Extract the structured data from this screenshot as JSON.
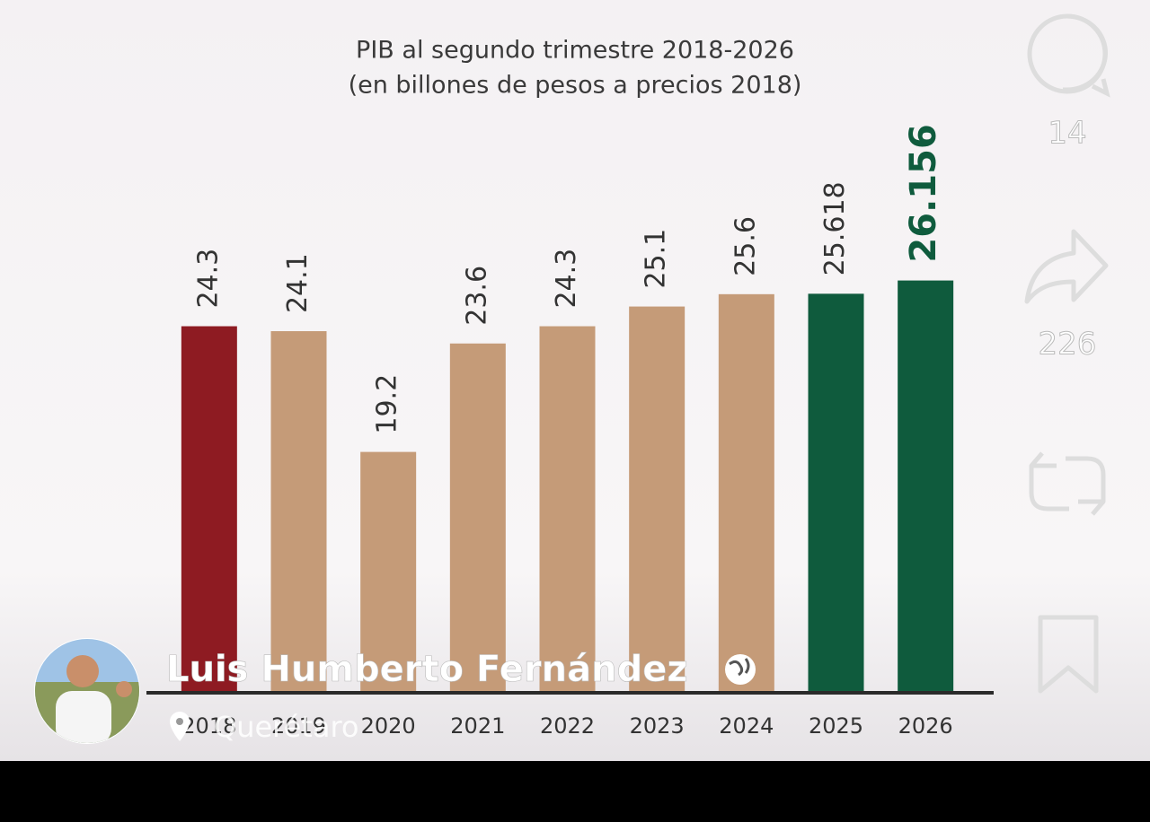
{
  "chart_data": {
    "type": "bar",
    "title": "PIB al segundo trimestre 2018-2026",
    "subtitle": "(en billones de pesos a precios 2018)",
    "categories": [
      "2018",
      "2019",
      "2020",
      "2021",
      "2022",
      "2023",
      "2024",
      "2025",
      "2026"
    ],
    "values": [
      24.3,
      24.1,
      19.2,
      23.6,
      24.3,
      25.1,
      25.6,
      25.618,
      26.156
    ],
    "colors": [
      "#8e1b22",
      "#c59b78",
      "#c59b78",
      "#c59b78",
      "#c59b78",
      "#c59b78",
      "#c59b78",
      "#0f5b3d",
      "#0f5b3d"
    ],
    "ylim": [
      9.5,
      30
    ]
  },
  "post": {
    "author": "Luis Humberto Fernández",
    "location": "Querétaro"
  },
  "actions": {
    "comments": 14,
    "shares": 226
  }
}
